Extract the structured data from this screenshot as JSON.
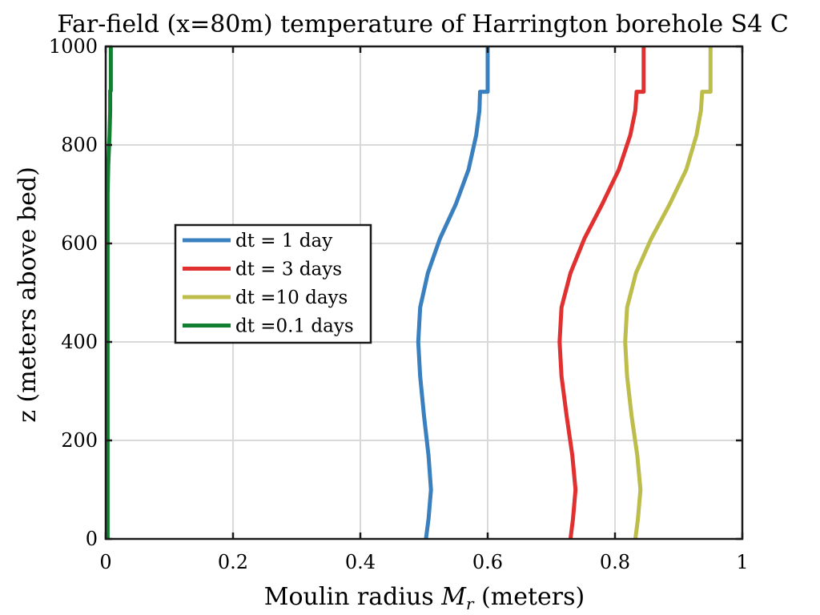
{
  "chart_data": {
    "type": "line",
    "title": "Far-field (x=80m) temperature of Harrington borehole S4 C",
    "xlabel": "Moulin radius M_r (meters)",
    "xlabel_parts": {
      "prefix": "Moulin radius ",
      "var": "M",
      "sub": "r",
      "suffix": " (meters)"
    },
    "ylabel": "z (meters above bed)",
    "xlim": [
      0,
      1
    ],
    "ylim": [
      0,
      1000
    ],
    "xticks": [
      "0",
      "0.2",
      "0.4",
      "0.6",
      "0.8",
      "1"
    ],
    "xtick_values": [
      0,
      0.2,
      0.4,
      0.6,
      0.8,
      1
    ],
    "yticks": [
      "0",
      "200",
      "400",
      "600",
      "800",
      "1000"
    ],
    "ytick_values": [
      0,
      200,
      400,
      600,
      800,
      1000
    ],
    "grid": true,
    "legend_position": "center-left",
    "series": [
      {
        "name": "dt = 1 day",
        "color": "#3a7fbe",
        "points": [
          [
            0.503,
            0
          ],
          [
            0.507,
            40
          ],
          [
            0.511,
            100
          ],
          [
            0.507,
            170
          ],
          [
            0.5,
            250
          ],
          [
            0.494,
            330
          ],
          [
            0.491,
            400
          ],
          [
            0.494,
            470
          ],
          [
            0.506,
            540
          ],
          [
            0.525,
            610
          ],
          [
            0.55,
            680
          ],
          [
            0.57,
            750
          ],
          [
            0.582,
            820
          ],
          [
            0.587,
            870
          ],
          [
            0.588,
            908
          ],
          [
            0.6,
            908
          ],
          [
            0.6,
            1000
          ]
        ]
      },
      {
        "name": "dt = 3 days",
        "color": "#e03030",
        "points": [
          [
            0.73,
            0
          ],
          [
            0.734,
            40
          ],
          [
            0.738,
            100
          ],
          [
            0.733,
            170
          ],
          [
            0.724,
            250
          ],
          [
            0.716,
            330
          ],
          [
            0.713,
            400
          ],
          [
            0.716,
            470
          ],
          [
            0.73,
            540
          ],
          [
            0.752,
            610
          ],
          [
            0.78,
            680
          ],
          [
            0.806,
            750
          ],
          [
            0.824,
            820
          ],
          [
            0.832,
            870
          ],
          [
            0.834,
            908
          ],
          [
            0.845,
            908
          ],
          [
            0.845,
            1000
          ]
        ]
      },
      {
        "name": "dt =10 days",
        "color": "#bdbd4c",
        "points": [
          [
            0.832,
            0
          ],
          [
            0.836,
            40
          ],
          [
            0.84,
            100
          ],
          [
            0.835,
            170
          ],
          [
            0.826,
            250
          ],
          [
            0.819,
            330
          ],
          [
            0.816,
            400
          ],
          [
            0.819,
            470
          ],
          [
            0.833,
            540
          ],
          [
            0.857,
            610
          ],
          [
            0.886,
            680
          ],
          [
            0.912,
            750
          ],
          [
            0.928,
            820
          ],
          [
            0.935,
            870
          ],
          [
            0.937,
            908
          ],
          [
            0.95,
            908
          ],
          [
            0.95,
            1000
          ]
        ]
      },
      {
        "name": "dt =0.1 days",
        "color": "#108030",
        "points": [
          [
            0.003,
            0
          ],
          [
            0.003,
            500
          ],
          [
            0.003,
            700
          ],
          [
            0.004,
            760
          ],
          [
            0.006,
            820
          ],
          [
            0.007,
            870
          ],
          [
            0.007,
            910
          ],
          [
            0.008,
            910
          ],
          [
            0.008,
            1000
          ]
        ]
      }
    ]
  }
}
